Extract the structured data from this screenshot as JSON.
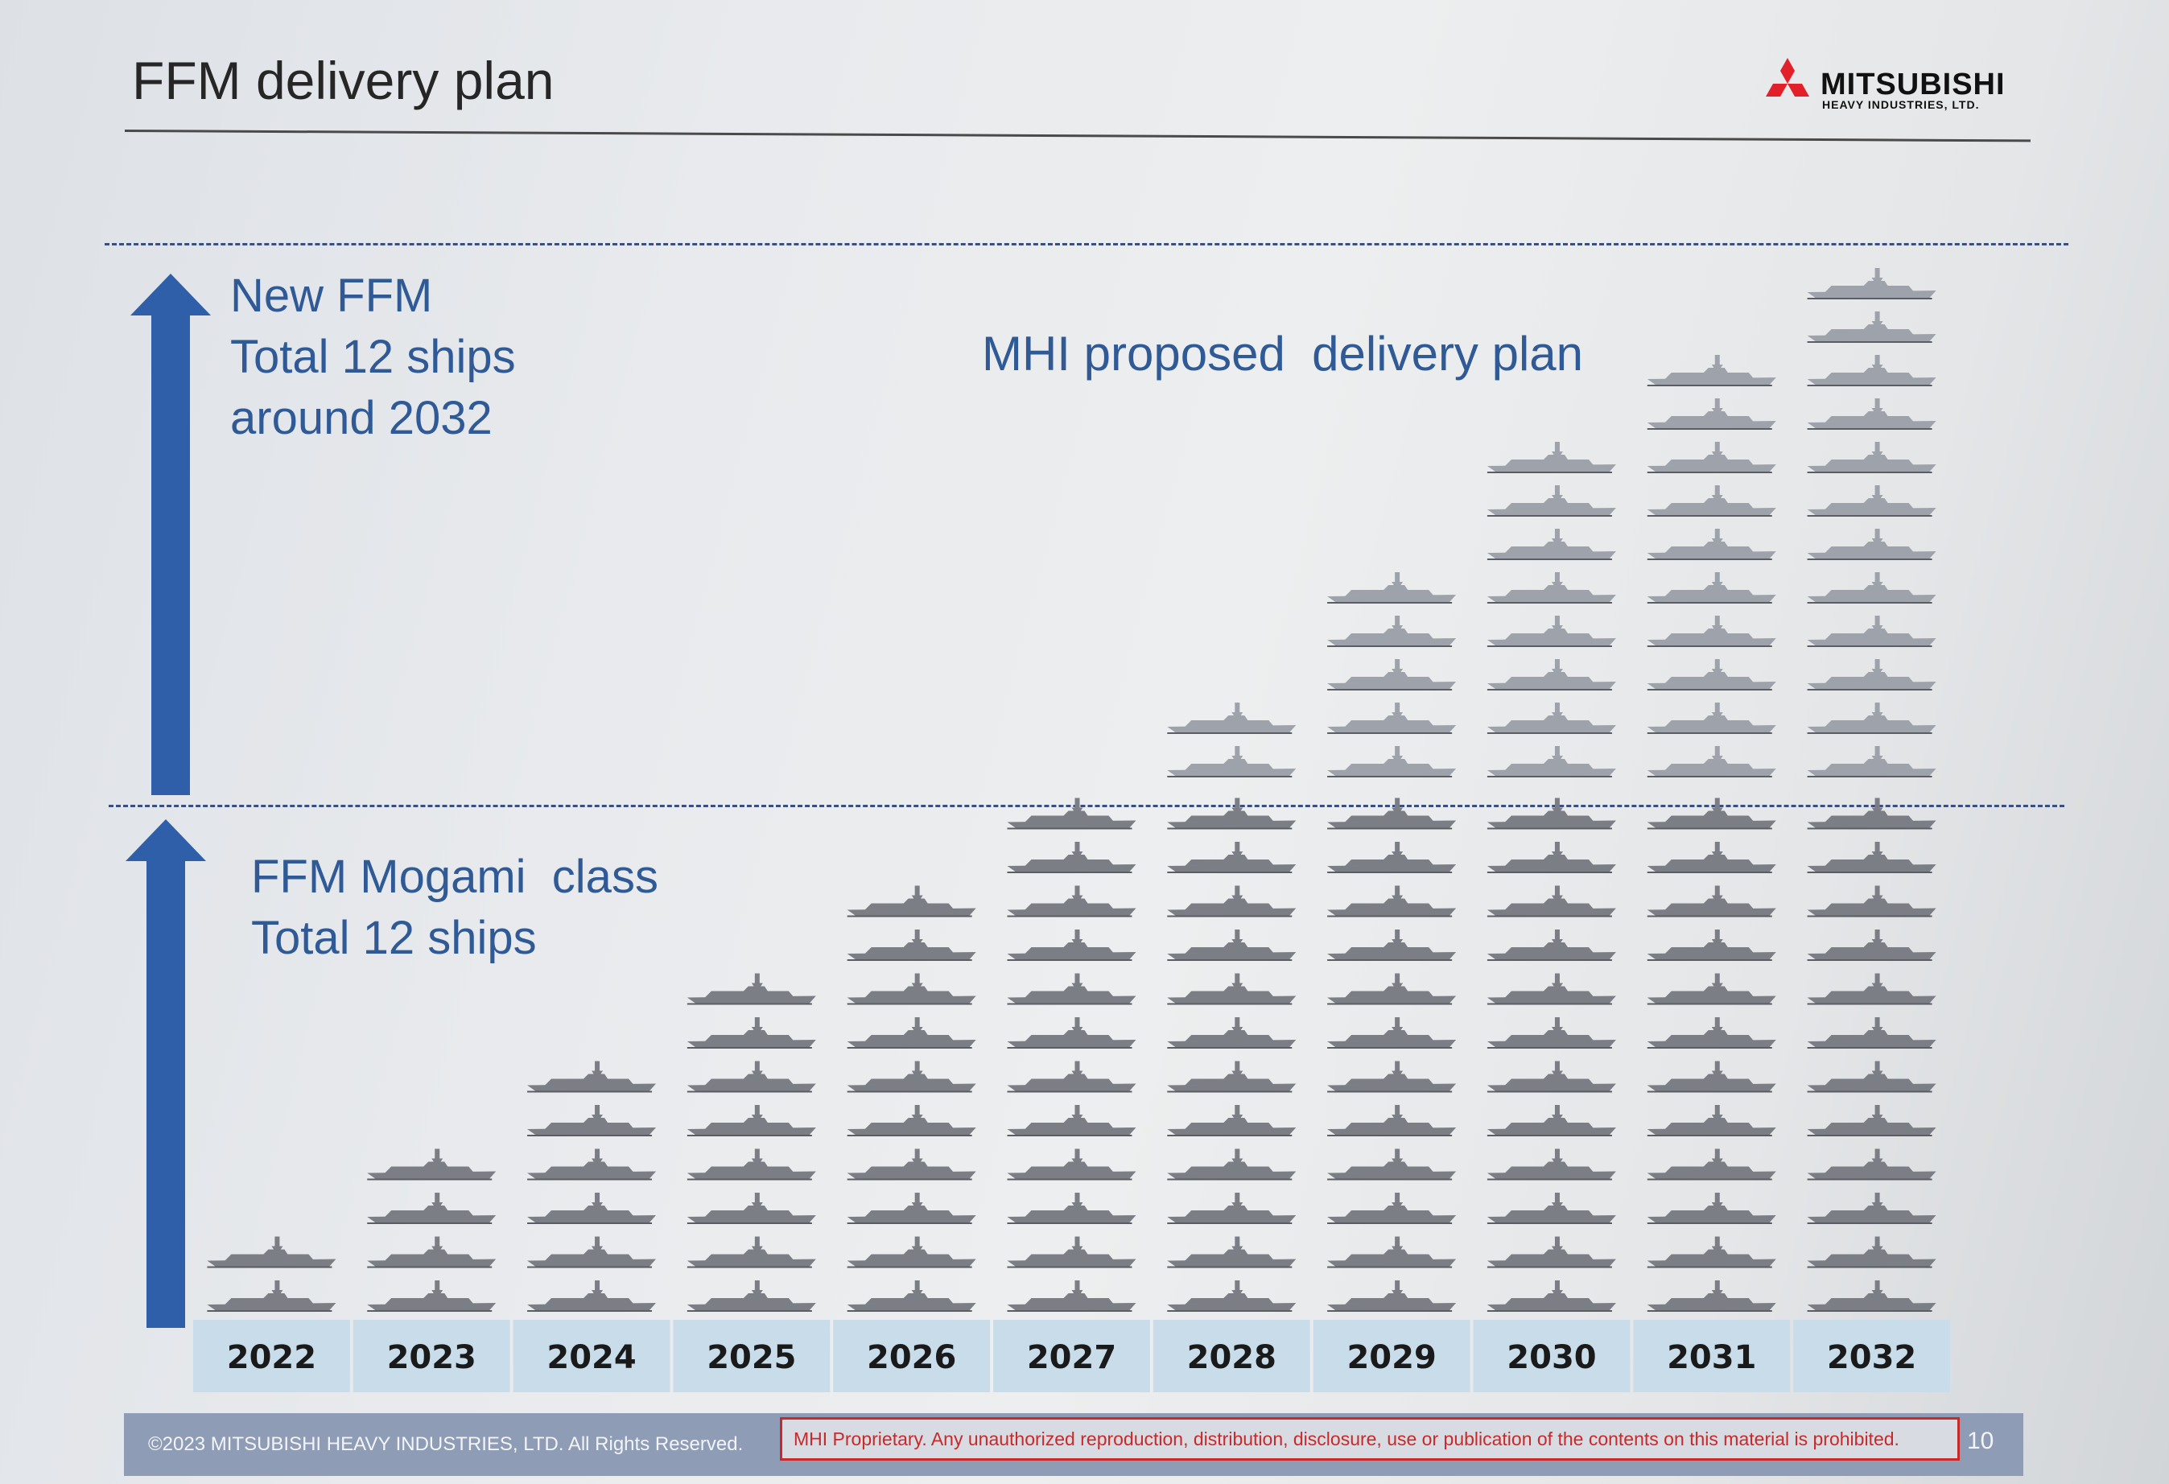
{
  "header": {
    "title": "FFM delivery plan"
  },
  "logo": {
    "name": "MITSUBISHI",
    "subtitle": "HEAVY INDUSTRIES, LTD.",
    "color": "#e2202a"
  },
  "labels": {
    "new_ffm": "New FFM\nTotal 12 ships\naround 2032",
    "mogami": "FFM Mogami  class\nTotal 12 ships",
    "proposal": "MHI proposed  delivery plan"
  },
  "footer": {
    "copyright": "©2023 MITSUBISHI HEAVY INDUSTRIES, LTD.  All Rights Reserved.",
    "notice": "MHI Proprietary. Any unauthorized reproduction, distribution, disclosure, use or publication of the contents on this material is prohibited.",
    "page_number": "10"
  },
  "colors": {
    "arrow": "#2e5fa8",
    "year_band": "#c9dcea",
    "ship_mogami": "#7b7e85",
    "ship_new": "#9ea3ab"
  },
  "chart_data": {
    "type": "bar",
    "categories": [
      "2022",
      "2023",
      "2024",
      "2025",
      "2026",
      "2027",
      "2028",
      "2029",
      "2030",
      "2031",
      "2032"
    ],
    "series": [
      {
        "values": [
          2,
          4,
          6,
          8,
          10,
          12,
          12,
          12,
          12,
          12,
          12
        ]
      },
      {
        "values": [
          0,
          0,
          0,
          0,
          0,
          0,
          2,
          5,
          8,
          10,
          12
        ]
      }
    ],
    "title": "",
    "xlabel": "",
    "ylabel": "",
    "ylim": [
      0,
      24
    ]
  }
}
